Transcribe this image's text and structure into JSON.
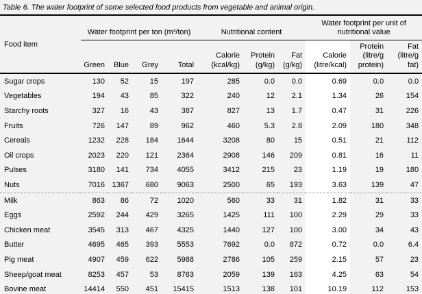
{
  "page_bg": "#f2f2f2",
  "highlight_bg": "#ffffff",
  "caption": "Table 6. The water footprint of some selected food products from vegetable and animal origin.",
  "table": {
    "row_header": "Food item",
    "column_groups": [
      {
        "label": "Water footprint per ton (m³/ton)",
        "span": 4
      },
      {
        "label": "Nutritional content",
        "span": 3
      },
      {
        "label": "Water footprint per unit of nutritional value",
        "span": 3
      }
    ],
    "columns": [
      "Green",
      "Blue",
      "Grey",
      "Total",
      "Calorie (kcal/kg)",
      "Protein (g/kg)",
      "Fat (g/kg)",
      "Calorie (litre/kcal)",
      "Protein (litre/g protein)",
      "Fat (litre/g fat)"
    ],
    "highlighted_column": "Calorie (litre/kcal)",
    "vegetable_rows": [
      [
        "Sugar crops",
        "130",
        "52",
        "15",
        "197",
        "285",
        "0.0",
        "0.0",
        "0.69",
        "0.0",
        "0.0"
      ],
      [
        "Vegetables",
        "194",
        "43",
        "85",
        "322",
        "240",
        "12",
        "2.1",
        "1.34",
        "26",
        "154"
      ],
      [
        "Starchy roots",
        "327",
        "16",
        "43",
        "387",
        "827",
        "13",
        "1.7",
        "0.47",
        "31",
        "226"
      ],
      [
        "Fruits",
        "726",
        "147",
        "89",
        "962",
        "460",
        "5.3",
        "2.8",
        "2.09",
        "180",
        "348"
      ],
      [
        "Cereals",
        "1232",
        "228",
        "184",
        "1644",
        "3208",
        "80",
        "15",
        "0.51",
        "21",
        "112"
      ],
      [
        "Oil crops",
        "2023",
        "220",
        "121",
        "2364",
        "2908",
        "146",
        "209",
        "0.81",
        "16",
        "11"
      ],
      [
        "Pulses",
        "3180",
        "141",
        "734",
        "4055",
        "3412",
        "215",
        "23",
        "1.19",
        "19",
        "180"
      ],
      [
        "Nuts",
        "7016",
        "1367",
        "680",
        "9063",
        "2500",
        "65",
        "193",
        "3.63",
        "139",
        "47"
      ]
    ],
    "animal_rows": [
      [
        "Milk",
        "863",
        "86",
        "72",
        "1020",
        "560",
        "33",
        "31",
        "1.82",
        "31",
        "33"
      ],
      [
        "Eggs",
        "2592",
        "244",
        "429",
        "3265",
        "1425",
        "111",
        "100",
        "2.29",
        "29",
        "33"
      ],
      [
        "Chicken meat",
        "3545",
        "313",
        "467",
        "4325",
        "1440",
        "127",
        "100",
        "3.00",
        "34",
        "43"
      ],
      [
        "Butter",
        "4695",
        "465",
        "393",
        "5553",
        "7692",
        "0.0",
        "872",
        "0.72",
        "0.0",
        "6.4"
      ],
      [
        "Pig meat",
        "4907",
        "459",
        "622",
        "5988",
        "2786",
        "105",
        "259",
        "2.15",
        "57",
        "23"
      ],
      [
        "Sheep/goat meat",
        "8253",
        "457",
        "53",
        "8763",
        "2059",
        "139",
        "163",
        "4.25",
        "63",
        "54"
      ],
      [
        "Bovine meat",
        "14414",
        "550",
        "451",
        "15415",
        "1513",
        "138",
        "101",
        "10.19",
        "112",
        "153"
      ]
    ]
  }
}
